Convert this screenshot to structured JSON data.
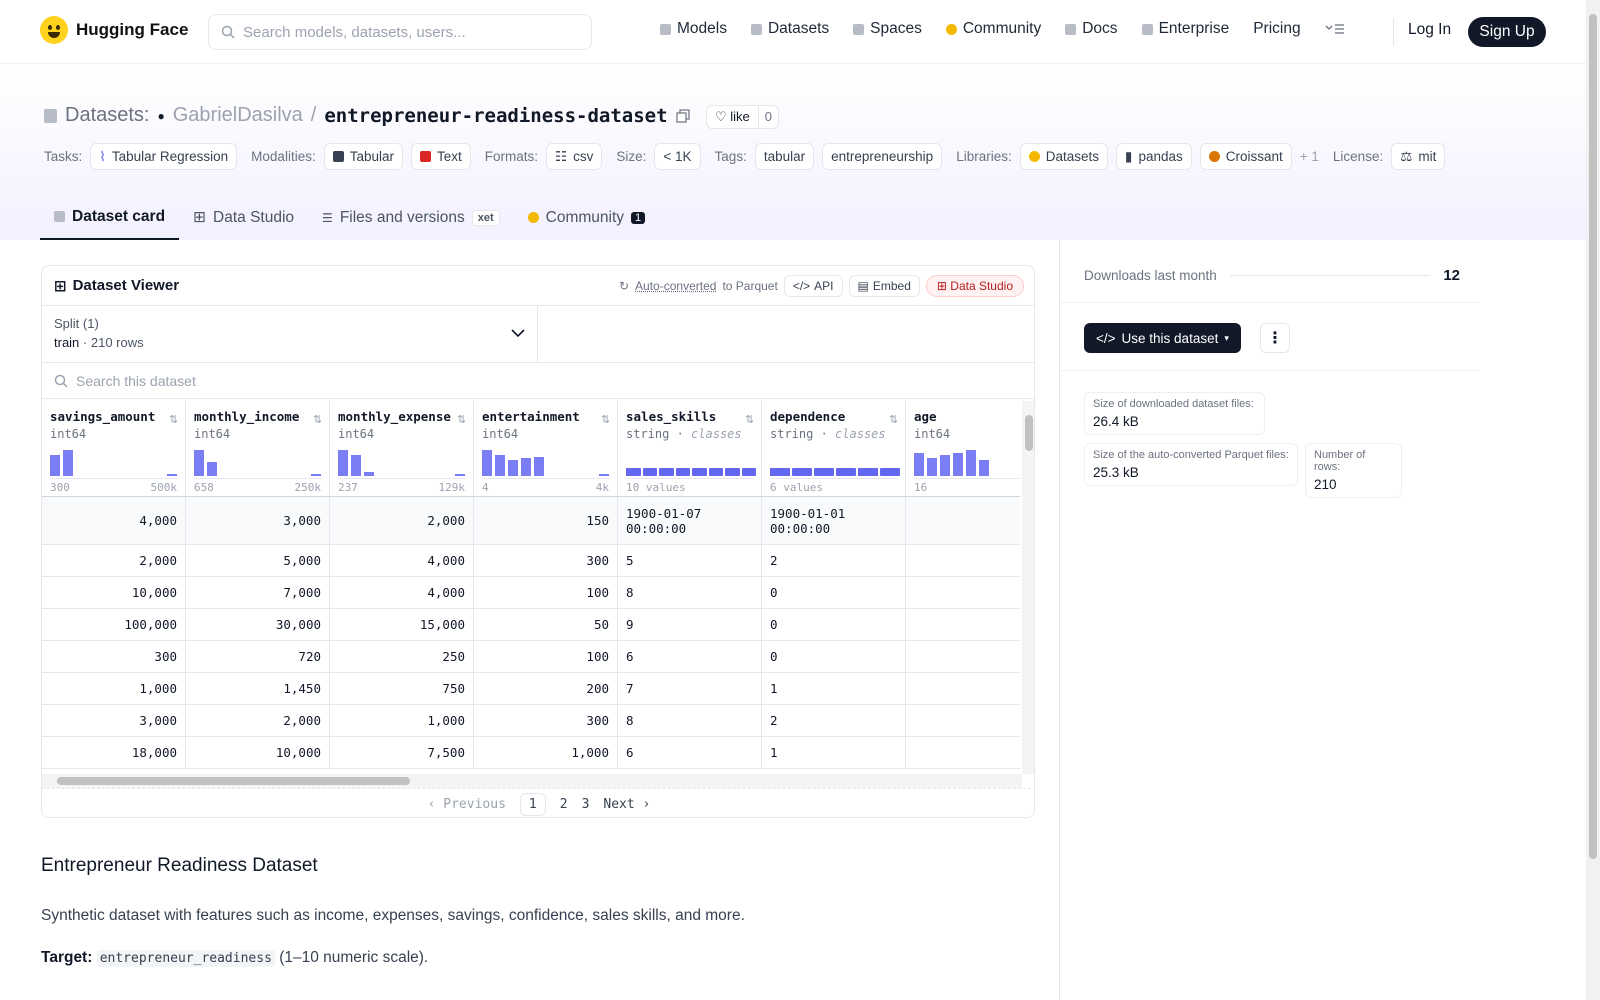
{
  "brand": {
    "name": "Hugging Face"
  },
  "search": {
    "placeholder": "Search models, datasets, users..."
  },
  "nav": {
    "items": [
      "Models",
      "Datasets",
      "Spaces",
      "Community",
      "Docs",
      "Enterprise",
      "Pricing"
    ],
    "login": "Log In",
    "signup": "Sign Up"
  },
  "repo": {
    "section": "Datasets:",
    "owner": "GabrielDasilva",
    "separator": "/",
    "name": "entrepreneur-readiness-dataset",
    "like_label": "like",
    "like_count": "0"
  },
  "tags": {
    "tasks_label": "Tasks:",
    "tasks": [
      "Tabular Regression"
    ],
    "modalities_label": "Modalities:",
    "modalities": [
      "Tabular",
      "Text"
    ],
    "formats_label": "Formats:",
    "formats": [
      "csv"
    ],
    "size_label": "Size:",
    "size": "< 1K",
    "tags_label": "Tags:",
    "tags": [
      "tabular",
      "entrepreneurship"
    ],
    "libraries_label": "Libraries:",
    "libraries": [
      "Datasets",
      "pandas",
      "Croissant"
    ],
    "more": "+ 1",
    "license_label": "License:",
    "license": "mit"
  },
  "tabs": {
    "dataset_card": "Dataset card",
    "data_studio": "Data Studio",
    "files": "Files and versions",
    "xet": "xet",
    "community": "Community",
    "community_count": "1"
  },
  "viewer": {
    "title": "Dataset Viewer",
    "auto_converted": "Auto-converted",
    "to_parquet": "to Parquet",
    "api": "API",
    "embed": "Embed",
    "data_studio": "Data Studio",
    "split_label": "Split (1)",
    "split_name": "train",
    "split_rows": "210 rows",
    "search_placeholder": "Search this dataset",
    "columns": [
      {
        "name": "savings_amount",
        "type": "int64",
        "min": "300",
        "max": "500k",
        "hist": [
          0.8,
          1.0,
          0,
          0,
          0,
          0,
          0,
          0,
          0,
          0.05
        ]
      },
      {
        "name": "monthly_income",
        "type": "int64",
        "min": "658",
        "max": "250k",
        "hist": [
          1.0,
          0.55,
          0,
          0,
          0,
          0,
          0,
          0,
          0,
          0.05
        ]
      },
      {
        "name": "monthly_expense",
        "type": "int64",
        "min": "237",
        "max": "129k",
        "hist": [
          1.0,
          0.8,
          0.15,
          0,
          0,
          0,
          0,
          0,
          0,
          0.05
        ]
      },
      {
        "name": "entertainment",
        "type": "int64",
        "min": "4",
        "max": "4k",
        "hist": [
          1.0,
          0.8,
          0.6,
          0.7,
          0.75,
          0,
          0,
          0,
          0,
          0.05
        ]
      },
      {
        "name": "sales_skills",
        "type": "string",
        "kind": "classes",
        "summary": "10 values"
      },
      {
        "name": "dependence",
        "type": "string",
        "kind": "classes",
        "summary": "6 values"
      },
      {
        "name": "age",
        "type": "int64",
        "min": "16",
        "max": "",
        "hist": [
          0.9,
          0.7,
          0.8,
          0.9,
          1.0,
          0.6
        ]
      }
    ],
    "rows": [
      [
        "4,000",
        "3,000",
        "2,000",
        "150",
        "1900-01-07 00:00:00",
        "1900-01-01 00:00:00",
        ""
      ],
      [
        "2,000",
        "5,000",
        "4,000",
        "300",
        "5",
        "2",
        ""
      ],
      [
        "10,000",
        "7,000",
        "4,000",
        "100",
        "8",
        "0",
        ""
      ],
      [
        "100,000",
        "30,000",
        "15,000",
        "50",
        "9",
        "0",
        ""
      ],
      [
        "300",
        "720",
        "250",
        "100",
        "6",
        "0",
        ""
      ],
      [
        "1,000",
        "1,450",
        "750",
        "200",
        "7",
        "1",
        ""
      ],
      [
        "3,000",
        "2,000",
        "1,000",
        "300",
        "8",
        "2",
        ""
      ],
      [
        "18,000",
        "10,000",
        "7,500",
        "1,000",
        "6",
        "1",
        ""
      ]
    ],
    "pager": {
      "previous": "Previous",
      "pages": [
        "1",
        "2",
        "3"
      ],
      "next": "Next"
    }
  },
  "card": {
    "heading": "Entrepreneur Readiness Dataset",
    "description": "Synthetic dataset with features such as income, expenses, savings, confidence, sales skills, and more.",
    "target_label": "Target:",
    "target_code": "entrepreneur_readiness",
    "target_desc": "(1–10 numeric scale)."
  },
  "sidebar": {
    "downloads_label": "Downloads last month",
    "downloads": "12",
    "use_dataset": "Use this dataset",
    "size_downloaded_label": "Size of downloaded dataset files:",
    "size_downloaded": "26.4 kB",
    "size_parquet_label": "Size of the auto-converted Parquet files:",
    "size_parquet": "25.3 kB",
    "rows_label": "Number of rows:",
    "rows": "210"
  },
  "colors": {
    "accent": "#6366f1",
    "dark": "#111827",
    "brand_yellow": "#ffd21e"
  }
}
